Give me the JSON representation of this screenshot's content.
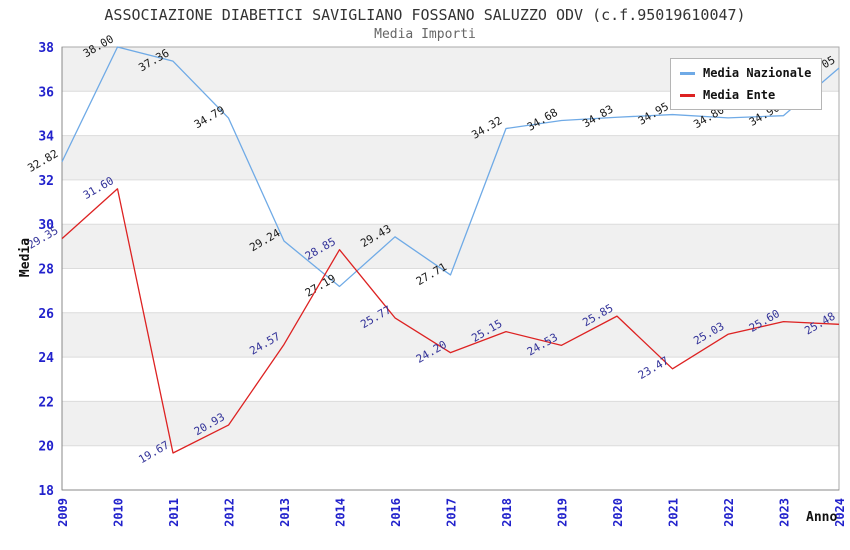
{
  "header": {
    "title": "ASSOCIAZIONE DIABETICI SAVIGLIANO FOSSANO SALUZZO ODV (c.f.95019610047)",
    "subtitle": "Media Importi"
  },
  "legend": {
    "items": [
      {
        "label": "Media Nazionale",
        "color": "#6faae6"
      },
      {
        "label": "Media Ente",
        "color": "#dd2222"
      }
    ]
  },
  "chart_data": {
    "type": "line",
    "title": "ASSOCIAZIONE DIABETICI SAVIGLIANO FOSSANO SALUZZO ODV (c.f.95019610047)",
    "subtitle": "Media Importi",
    "xlabel": "Anno",
    "ylabel": "Media",
    "ylim": [
      18,
      38
    ],
    "ytick_step": 2,
    "grid": true,
    "band_fill": "#f0f0f0",
    "tick_label_color": "#2222cc",
    "legend_position": "top-right",
    "categories": [
      "2009",
      "2010",
      "2011",
      "2012",
      "2013",
      "2014",
      "2016",
      "2017",
      "2018",
      "2019",
      "2020",
      "2021",
      "2022",
      "2023",
      "2024"
    ],
    "series": [
      {
        "name": "Media Nazionale",
        "color": "#6faae6",
        "label_color": "#1a1a1a",
        "values": [
          32.82,
          38.0,
          37.36,
          34.79,
          29.24,
          27.19,
          29.43,
          27.71,
          34.32,
          34.68,
          34.83,
          34.95,
          34.8,
          34.9,
          37.05
        ]
      },
      {
        "name": "Media Ente",
        "color": "#dd2222",
        "label_color": "#333399",
        "values": [
          29.35,
          31.6,
          19.67,
          20.93,
          24.57,
          28.85,
          25.77,
          24.2,
          25.15,
          24.53,
          25.85,
          23.47,
          25.03,
          25.6,
          25.48
        ]
      }
    ]
  }
}
